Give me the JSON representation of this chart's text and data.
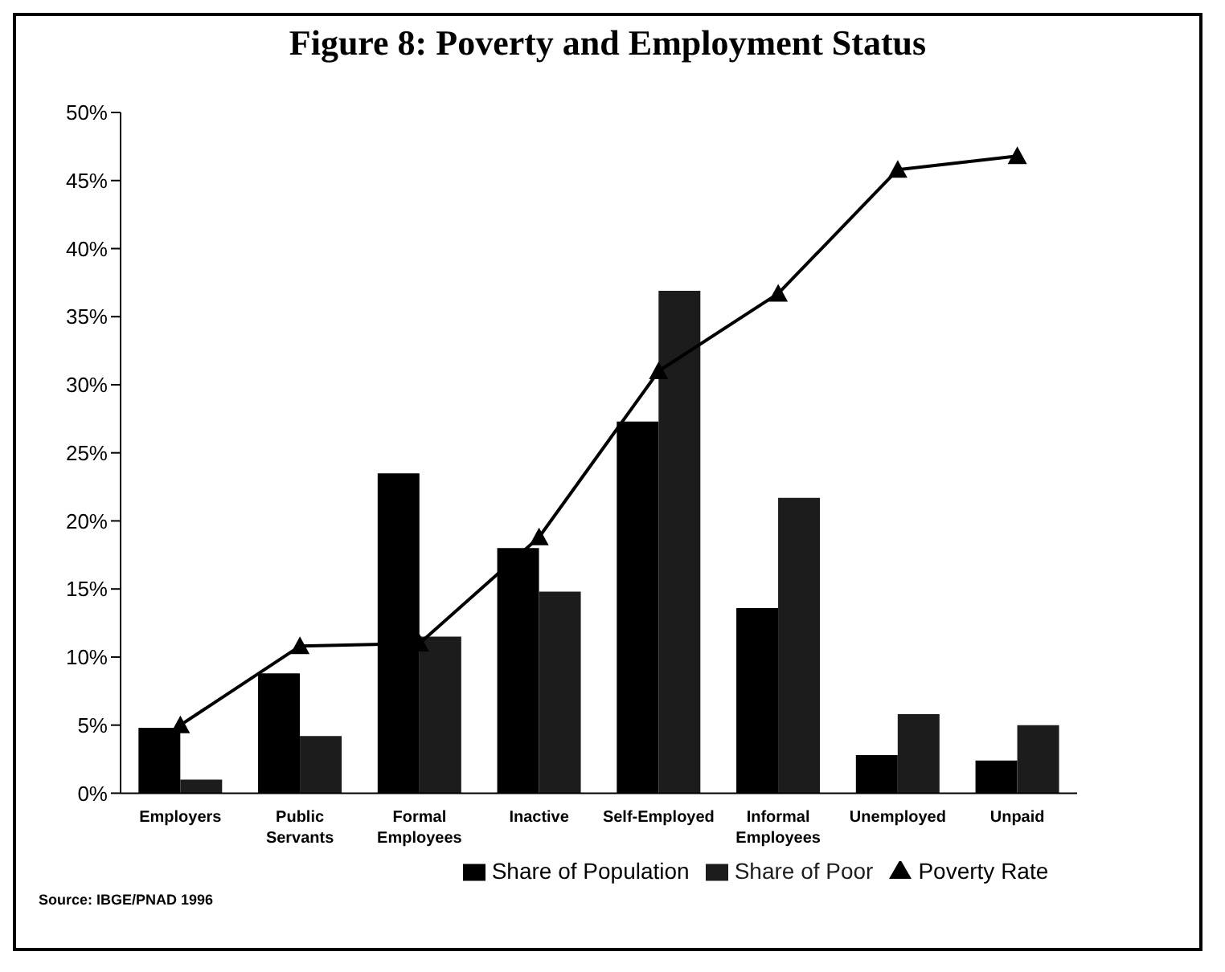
{
  "chart_data": {
    "type": "bar",
    "title": "Figure 8: Poverty and Employment Status",
    "categories": [
      "Employers",
      "Public Servants",
      "Formal Employees",
      "Inactive",
      "Self-Employed",
      "Informal Employees",
      "Unemployed",
      "Unpaid"
    ],
    "series": [
      {
        "name": "Share of Population",
        "color": "#000000",
        "values": [
          4.8,
          8.8,
          23.5,
          18,
          27.3,
          13.6,
          2.8,
          2.4
        ]
      },
      {
        "name": "Share of Poor",
        "color": "#1c1c1c",
        "values": [
          1.0,
          4.2,
          11.5,
          14.8,
          36.9,
          21.7,
          5.8,
          5.0
        ]
      },
      {
        "name": "Poverty Rate",
        "type": "line",
        "color": "#000000",
        "marker": "triangle",
        "values": [
          5.0,
          10.8,
          11.0,
          18.8,
          31,
          36.7,
          45.8,
          46.8
        ]
      }
    ],
    "ylim": [
      0,
      50
    ],
    "yticks": [
      {
        "value": 0,
        "label": "0%"
      },
      {
        "value": 5,
        "label": "5%"
      },
      {
        "value": 10,
        "label": "10%"
      },
      {
        "value": 15,
        "label": "15%"
      },
      {
        "value": 20,
        "label": "20%"
      },
      {
        "value": 25,
        "label": "25%"
      },
      {
        "value": 30,
        "label": "30%"
      },
      {
        "value": 35,
        "label": "35%"
      },
      {
        "value": 40,
        "label": "40%"
      },
      {
        "value": 45,
        "label": "45%"
      },
      {
        "value": 50,
        "label": "50%"
      }
    ],
    "grid": false,
    "legend": "bottom",
    "annotations": [
      "Source: IBGE/PNAD 1996"
    ]
  }
}
